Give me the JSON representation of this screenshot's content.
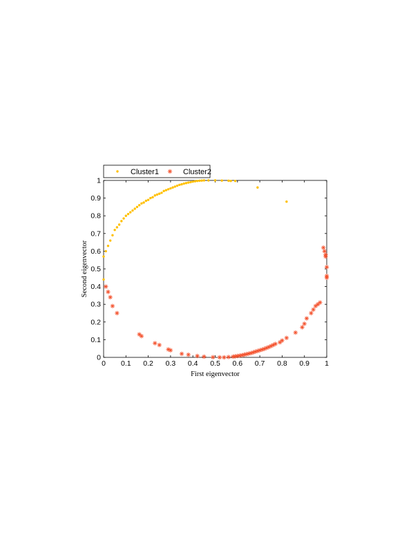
{
  "chart_data": {
    "type": "scatter",
    "xlabel": "First eigenvector",
    "ylabel": "Second eigenvector",
    "xlim": [
      0,
      1
    ],
    "ylim": [
      0,
      1
    ],
    "xticks": [
      "0",
      "0.1",
      "0.2",
      "0.3",
      "0.4",
      "0.5",
      "0.6",
      "0.7",
      "0.8",
      "0.9",
      "1"
    ],
    "yticks": [
      "0",
      "0.1",
      "0.2",
      "0.3",
      "0.4",
      "0.5",
      "0.6",
      "0.7",
      "0.8",
      "0.9",
      "1"
    ],
    "grid": false,
    "legend_position": "top-left-outside",
    "series": [
      {
        "name": "Cluster1",
        "marker": "dot",
        "color": "#FFC000",
        "points": [
          [
            0.0,
            0.44
          ],
          [
            0.0,
            0.57
          ],
          [
            0.01,
            0.6
          ],
          [
            0.02,
            0.63
          ],
          [
            0.03,
            0.66
          ],
          [
            0.04,
            0.69
          ],
          [
            0.05,
            0.72
          ],
          [
            0.06,
            0.735
          ],
          [
            0.07,
            0.75
          ],
          [
            0.08,
            0.77
          ],
          [
            0.09,
            0.785
          ],
          [
            0.1,
            0.8
          ],
          [
            0.11,
            0.81
          ],
          [
            0.12,
            0.82
          ],
          [
            0.13,
            0.83
          ],
          [
            0.14,
            0.84
          ],
          [
            0.15,
            0.85
          ],
          [
            0.16,
            0.86
          ],
          [
            0.17,
            0.87
          ],
          [
            0.18,
            0.875
          ],
          [
            0.19,
            0.885
          ],
          [
            0.2,
            0.89
          ],
          [
            0.21,
            0.9
          ],
          [
            0.22,
            0.905
          ],
          [
            0.23,
            0.915
          ],
          [
            0.24,
            0.92
          ],
          [
            0.25,
            0.925
          ],
          [
            0.26,
            0.93
          ],
          [
            0.27,
            0.94
          ],
          [
            0.28,
            0.945
          ],
          [
            0.29,
            0.95
          ],
          [
            0.3,
            0.955
          ],
          [
            0.31,
            0.96
          ],
          [
            0.32,
            0.965
          ],
          [
            0.33,
            0.97
          ],
          [
            0.34,
            0.975
          ],
          [
            0.35,
            0.978
          ],
          [
            0.36,
            0.982
          ],
          [
            0.37,
            0.985
          ],
          [
            0.38,
            0.988
          ],
          [
            0.39,
            0.99
          ],
          [
            0.4,
            0.993
          ],
          [
            0.41,
            0.995
          ],
          [
            0.42,
            0.997
          ],
          [
            0.43,
            0.998
          ],
          [
            0.44,
            0.999
          ],
          [
            0.45,
            1.0
          ],
          [
            0.47,
            1.0
          ],
          [
            0.5,
            1.0
          ],
          [
            0.53,
            0.999
          ],
          [
            0.56,
            0.998
          ],
          [
            0.57,
            0.997
          ],
          [
            0.59,
            0.997
          ],
          [
            0.69,
            0.96
          ],
          [
            0.82,
            0.88
          ]
        ]
      },
      {
        "name": "Cluster2",
        "marker": "asterisk",
        "color": "#F4512C",
        "points": [
          [
            0.01,
            0.4
          ],
          [
            0.02,
            0.37
          ],
          [
            0.03,
            0.34
          ],
          [
            0.04,
            0.29
          ],
          [
            0.06,
            0.25
          ],
          [
            0.16,
            0.13
          ],
          [
            0.17,
            0.12
          ],
          [
            0.23,
            0.08
          ],
          [
            0.25,
            0.07
          ],
          [
            0.29,
            0.045
          ],
          [
            0.3,
            0.04
          ],
          [
            0.35,
            0.02
          ],
          [
            0.38,
            0.015
          ],
          [
            0.42,
            0.008
          ],
          [
            0.45,
            0.004
          ],
          [
            0.49,
            0.001
          ],
          [
            0.52,
            0.0
          ],
          [
            0.54,
            0.0
          ],
          [
            0.56,
            0.002
          ],
          [
            0.58,
            0.004
          ],
          [
            0.59,
            0.006
          ],
          [
            0.6,
            0.008
          ],
          [
            0.61,
            0.01
          ],
          [
            0.62,
            0.012
          ],
          [
            0.63,
            0.015
          ],
          [
            0.64,
            0.018
          ],
          [
            0.65,
            0.021
          ],
          [
            0.66,
            0.024
          ],
          [
            0.67,
            0.028
          ],
          [
            0.68,
            0.032
          ],
          [
            0.69,
            0.036
          ],
          [
            0.7,
            0.04
          ],
          [
            0.71,
            0.044
          ],
          [
            0.72,
            0.048
          ],
          [
            0.73,
            0.053
          ],
          [
            0.74,
            0.058
          ],
          [
            0.75,
            0.064
          ],
          [
            0.76,
            0.07
          ],
          [
            0.77,
            0.076
          ],
          [
            0.79,
            0.085
          ],
          [
            0.8,
            0.095
          ],
          [
            0.82,
            0.11
          ],
          [
            0.86,
            0.14
          ],
          [
            0.89,
            0.17
          ],
          [
            0.9,
            0.19
          ],
          [
            0.91,
            0.22
          ],
          [
            0.93,
            0.25
          ],
          [
            0.94,
            0.27
          ],
          [
            0.95,
            0.29
          ],
          [
            0.96,
            0.3
          ],
          [
            0.97,
            0.31
          ],
          [
            0.985,
            0.62
          ],
          [
            0.99,
            0.6
          ],
          [
            0.995,
            0.58
          ],
          [
            0.995,
            0.57
          ],
          [
            1.0,
            0.51
          ],
          [
            1.0,
            0.46
          ],
          [
            1.0,
            0.45
          ]
        ]
      }
    ]
  }
}
